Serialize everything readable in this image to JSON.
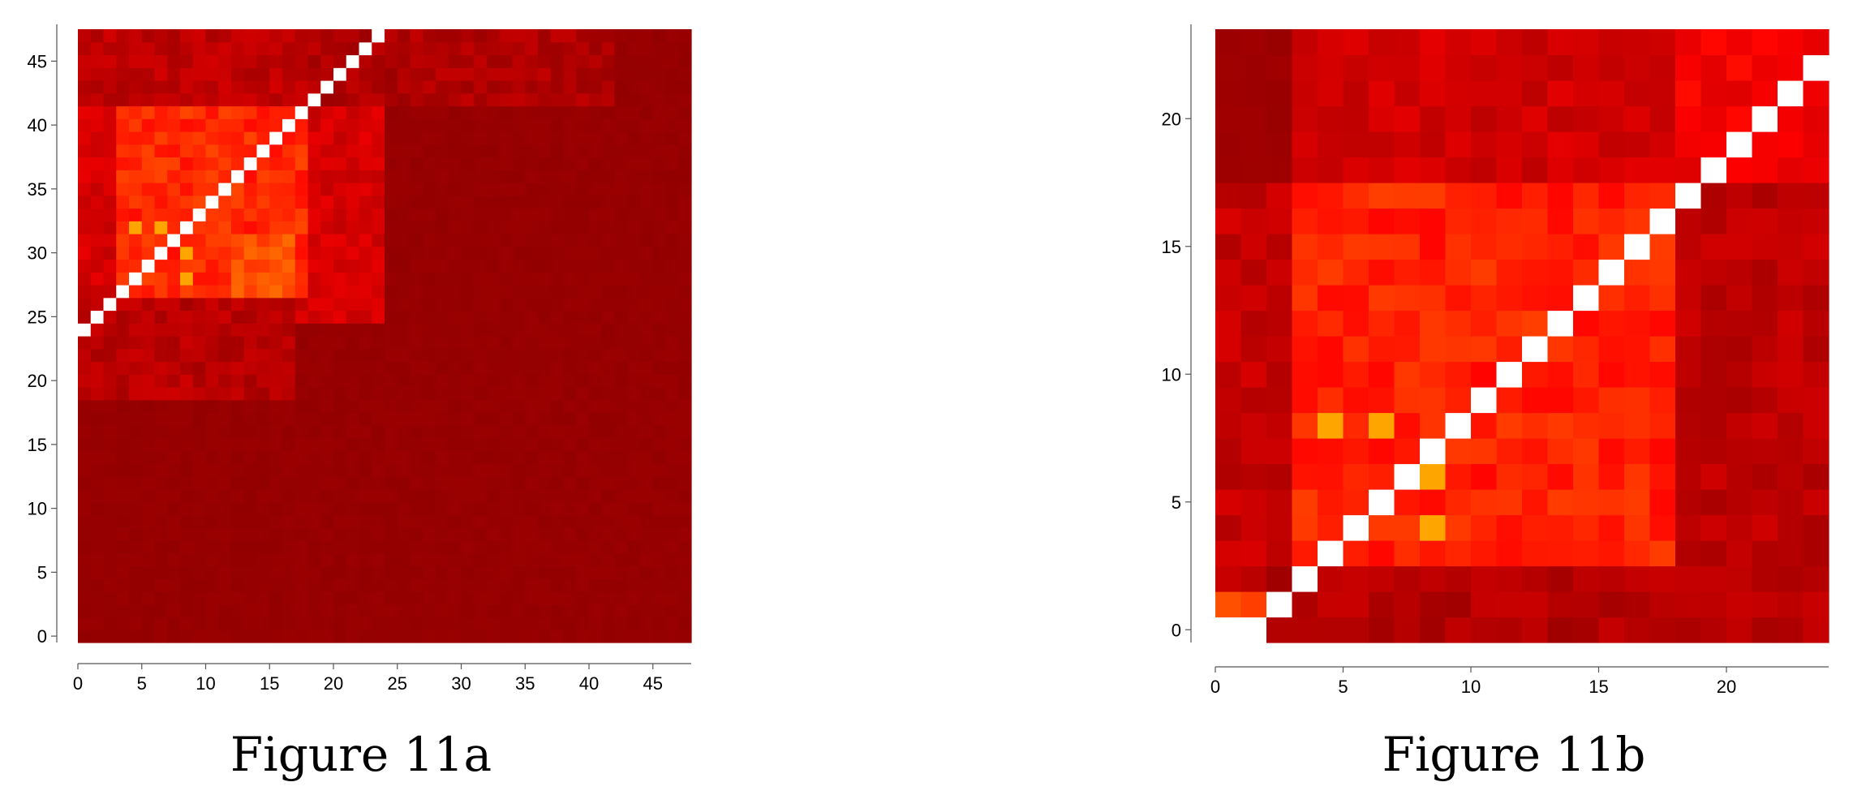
{
  "chart_data": [
    {
      "type": "heatmap",
      "n": 48,
      "caption": "Figure 11a",
      "xlim": [
        0,
        48
      ],
      "ylim": [
        0,
        48
      ],
      "xticks": [
        0,
        5,
        10,
        15,
        20,
        25,
        30,
        35,
        40,
        45
      ],
      "yticks": [
        0,
        5,
        10,
        15,
        20,
        25,
        30,
        35,
        40,
        45
      ],
      "grid": false,
      "colormap": [
        "#8b0000",
        "#ff0000",
        "#ffa500"
      ],
      "diagonal_color": "#ffffff",
      "diagonal": "cells with row = col + 24, for col 0..23, drawn white",
      "regions": [
        {
          "rows": [
            0,
            24
          ],
          "cols": [
            0,
            48
          ],
          "value": 0.05
        },
        {
          "rows": [
            25,
            47
          ],
          "cols": [
            24,
            48
          ],
          "value": 0.05
        },
        {
          "rows": [
            25,
            47
          ],
          "cols": [
            0,
            24
          ],
          "value": 0.32
        },
        {
          "rows": [
            27,
            41
          ],
          "cols": [
            3,
            18
          ],
          "value": 0.62
        },
        {
          "rows": [
            42,
            47
          ],
          "cols": [
            0,
            18
          ],
          "value": 0.22
        },
        {
          "rows": [
            19,
            26
          ],
          "cols": [
            0,
            17
          ],
          "value": 0.2
        },
        {
          "rows": [
            27,
            31
          ],
          "cols": [
            12,
            17
          ],
          "value": 0.75
        },
        {
          "rows": [
            42,
            47
          ],
          "cols": [
            18,
            42
          ],
          "value": 0.16
        }
      ],
      "highlights": [
        {
          "row": 32,
          "col": 4,
          "value": 1.0
        },
        {
          "row": 32,
          "col": 6,
          "value": 1.0
        },
        {
          "row": 30,
          "col": 8,
          "value": 1.0
        },
        {
          "row": 28,
          "col": 8,
          "value": 1.0
        }
      ]
    },
    {
      "type": "heatmap",
      "n": 24,
      "caption": "Figure 11b",
      "xlim": [
        0,
        24
      ],
      "ylim": [
        0,
        24
      ],
      "xticks": [
        0,
        5,
        10,
        15,
        20
      ],
      "yticks": [
        0,
        5,
        10,
        15,
        20
      ],
      "grid": false,
      "colormap": [
        "#8b0000",
        "#ff0000",
        "#ffa500"
      ],
      "diagonal_color": "#ffffff",
      "diagonal": "cells with row = col - 1, for col 1..23; white cell at row 0, col 0",
      "regions": [
        {
          "rows": [
            0,
            2
          ],
          "cols": [
            0,
            24
          ],
          "value": 0.18
        },
        {
          "rows": [
            3,
            17
          ],
          "cols": [
            0,
            3
          ],
          "value": 0.25
        },
        {
          "rows": [
            3,
            17
          ],
          "cols": [
            3,
            18
          ],
          "value": 0.6
        },
        {
          "rows": [
            3,
            17
          ],
          "cols": [
            18,
            24
          ],
          "value": 0.22
        },
        {
          "rows": [
            18,
            23
          ],
          "cols": [
            0,
            3
          ],
          "value": 0.08
        },
        {
          "rows": [
            18,
            23
          ],
          "cols": [
            3,
            18
          ],
          "value": 0.3
        },
        {
          "rows": [
            18,
            23
          ],
          "cols": [
            18,
            24
          ],
          "value": 0.45
        },
        {
          "rows": [
            0,
            1
          ],
          "cols": [
            0,
            2
          ],
          "value": 0.7
        }
      ],
      "highlights": [
        {
          "row": 8,
          "col": 4,
          "value": 1.0
        },
        {
          "row": 8,
          "col": 6,
          "value": 1.0
        },
        {
          "row": 6,
          "col": 8,
          "value": 1.0
        },
        {
          "row": 4,
          "col": 8,
          "value": 1.0
        }
      ]
    }
  ]
}
